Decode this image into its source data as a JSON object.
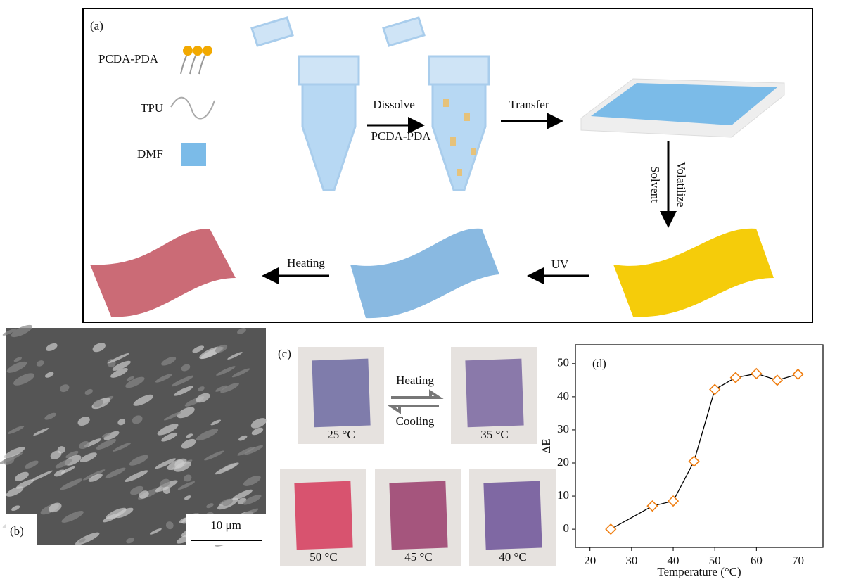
{
  "panel_a": {
    "label": "(a)",
    "legend": [
      "PCDA-PDA",
      "TPU",
      "DMF"
    ],
    "steps": {
      "dissolve": "Dissolve",
      "dissolve_agent": "PCDA-PDA",
      "transfer": "Transfer",
      "solvent": "Solvent",
      "volatilize": "Volatilize",
      "uv": "UV",
      "heating": "Heating"
    }
  },
  "panel_b": {
    "label": "(b)",
    "scale_bar": "10 μm"
  },
  "panel_c": {
    "label": "(c)",
    "heating": "Heating",
    "cooling": "Cooling",
    "samples": [
      "25 °C",
      "35 °C",
      "50 °C",
      "45 °C",
      "40 °C"
    ]
  },
  "chart_data": {
    "type": "line",
    "annotation": "(d)",
    "xlabel": "Temperature (°C)",
    "ylabel": "ΔE",
    "x": [
      25,
      35,
      40,
      45,
      50,
      55,
      60,
      65,
      70
    ],
    "series": [
      {
        "color": "#f07f13",
        "values": [
          0,
          7,
          8.5,
          20.5,
          42.2,
          45.8,
          47,
          45,
          46.8
        ]
      }
    ],
    "xlim": [
      16.5,
      76
    ],
    "ylim": [
      -5.5,
      55.7
    ],
    "xticks": [
      20,
      30,
      40,
      50,
      60,
      70
    ],
    "yticks": [
      0,
      10,
      20,
      30,
      40,
      50
    ]
  }
}
